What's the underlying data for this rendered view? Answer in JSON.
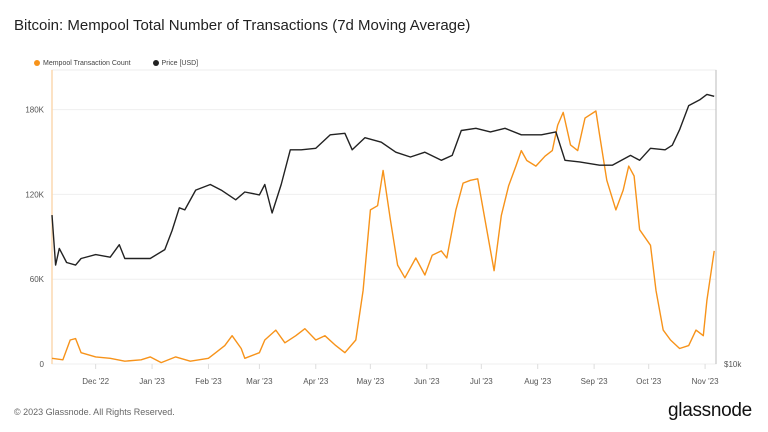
{
  "title": "Bitcoin: Mempool Total Number of Transactions (7d Moving Average)",
  "footer": "© 2023 Glassnode. All Rights Reserved.",
  "logo": "glassnode",
  "chart_data": {
    "type": "line",
    "title": "Bitcoin: Mempool Total Number of Transactions (7d Moving Average)",
    "x_unit": "days since 2022-12-01",
    "xlim": [
      -24,
      341
    ],
    "x_ticks": [
      {
        "day": 0,
        "label": "Dec '22"
      },
      {
        "day": 31,
        "label": "Jan '23"
      },
      {
        "day": 62,
        "label": "Feb '23"
      },
      {
        "day": 90,
        "label": "Mar '23"
      },
      {
        "day": 121,
        "label": "Apr '23"
      },
      {
        "day": 151,
        "label": "May '23"
      },
      {
        "day": 182,
        "label": "Jun '23"
      },
      {
        "day": 212,
        "label": "Jul '23"
      },
      {
        "day": 243,
        "label": "Aug '23"
      },
      {
        "day": 274,
        "label": "Sep '23"
      },
      {
        "day": 304,
        "label": "Oct '23"
      },
      {
        "day": 335,
        "label": "Nov '23"
      }
    ],
    "y_left": {
      "scale": "linear",
      "ylim": [
        0,
        208000
      ],
      "ticks": [
        {
          "v": 0,
          "label": "0"
        },
        {
          "v": 60000,
          "label": "60K"
        },
        {
          "v": 120000,
          "label": "120K"
        },
        {
          "v": 180000,
          "label": "180K"
        }
      ]
    },
    "y_right": {
      "scale": "log",
      "ylim": [
        10000,
        39700
      ],
      "ticks": [
        {
          "v": 10000,
          "label": "$10k"
        }
      ]
    },
    "legend_position": "top-left",
    "series": [
      {
        "name": "Mempool Transaction Count",
        "color": "#f7931a",
        "axis": "left",
        "x": [
          -24,
          -18,
          -14,
          -11,
          -8,
          0,
          8,
          16,
          25,
          30,
          36,
          44,
          52,
          62,
          66,
          71,
          75,
          80,
          82,
          90,
          93,
          99,
          104,
          110,
          115,
          121,
          126,
          132,
          137,
          143,
          147,
          151,
          155,
          158,
          162,
          166,
          170,
          176,
          181,
          185,
          190,
          193,
          198,
          202,
          206,
          210,
          214,
          219,
          223,
          227,
          231,
          234,
          237,
          242,
          247,
          251,
          254,
          257,
          261,
          265,
          269,
          275,
          277,
          281,
          286,
          290,
          293,
          296,
          299,
          305,
          308,
          312,
          316,
          321,
          326,
          330,
          334,
          336,
          340
        ],
        "y": [
          4000,
          3000,
          17000,
          18000,
          8000,
          5000,
          4000,
          2000,
          3000,
          5000,
          1000,
          5000,
          2000,
          4000,
          8000,
          13000,
          20000,
          11000,
          4000,
          8000,
          17000,
          24000,
          15000,
          20000,
          25000,
          17000,
          20000,
          13000,
          8000,
          17000,
          52000,
          109000,
          112000,
          137000,
          102000,
          70000,
          61000,
          75000,
          63000,
          77000,
          80000,
          75000,
          109000,
          128000,
          130000,
          131000,
          102000,
          66000,
          105000,
          126000,
          140000,
          151000,
          144000,
          140000,
          147000,
          151000,
          169000,
          178000,
          155000,
          151000,
          174000,
          179000,
          162000,
          130000,
          109000,
          123000,
          140000,
          133000,
          95000,
          84000,
          52000,
          24000,
          17000,
          11000,
          13000,
          24000,
          20000,
          45000,
          80000
        ]
      },
      {
        "name": "Price [USD]",
        "color": "#222222",
        "axis": "right",
        "x": [
          -24,
          -22,
          -20,
          -16,
          -11,
          -8,
          0,
          8,
          13,
          16,
          30,
          38,
          42,
          46,
          49,
          55,
          63,
          69,
          77,
          82,
          90,
          93,
          97,
          102,
          107,
          113,
          121,
          129,
          137,
          141,
          148,
          157,
          165,
          173,
          181,
          190,
          196,
          201,
          209,
          217,
          225,
          234,
          245,
          253,
          258,
          266,
          277,
          284,
          294,
          299,
          305,
          313,
          317,
          321,
          326,
          332,
          336,
          340
        ],
        "y": [
          20100,
          15900,
          17200,
          16100,
          15900,
          16400,
          16700,
          16500,
          17500,
          16400,
          16400,
          17100,
          18700,
          20800,
          20600,
          22600,
          23200,
          22600,
          21600,
          22400,
          22100,
          23200,
          20300,
          23200,
          27300,
          27300,
          27500,
          29300,
          29500,
          27300,
          28900,
          28300,
          27000,
          26400,
          27000,
          26000,
          26600,
          29900,
          30200,
          29700,
          30200,
          29300,
          29300,
          29700,
          26000,
          25800,
          25400,
          25400,
          26600,
          26000,
          27500,
          27300,
          27900,
          30000,
          33600,
          34500,
          35400,
          35100
        ]
      }
    ]
  }
}
